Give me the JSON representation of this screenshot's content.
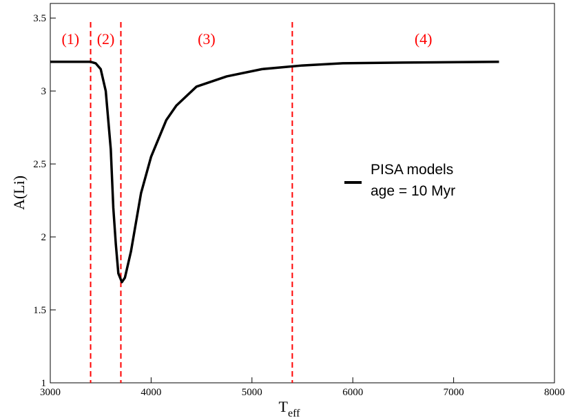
{
  "chart_data": {
    "type": "line",
    "xlabel": "T",
    "xlabel_subscript": "eff",
    "ylabel": "A(Li)",
    "x": [
      3000,
      3400,
      3450,
      3500,
      3550,
      3600,
      3625,
      3650,
      3675,
      3710,
      3740,
      3800,
      3900,
      4000,
      4150,
      4250,
      4450,
      4750,
      5100,
      5500,
      5900,
      6500,
      7450
    ],
    "series": [
      {
        "name": "PISA models",
        "color": "#000000",
        "values": [
          3.2,
          3.2,
          3.19,
          3.15,
          3.0,
          2.6,
          2.2,
          1.95,
          1.75,
          1.69,
          1.72,
          1.9,
          2.3,
          2.55,
          2.8,
          2.9,
          3.03,
          3.1,
          3.15,
          3.175,
          3.19,
          3.195,
          3.2
        ]
      }
    ],
    "legend_note": "age = 10 Myr",
    "vlines": [
      3400,
      3700,
      5400
    ],
    "vline_color": "#ff0000",
    "regions": [
      "(1)",
      "(2)",
      "(3)",
      "(4)"
    ],
    "xlim": [
      3000,
      8000
    ],
    "xticks": [
      3000,
      4000,
      5000,
      6000,
      7000,
      8000
    ],
    "ylim": [
      1,
      3.6
    ],
    "yticks": [
      1,
      1.5,
      2,
      2.5,
      3,
      3.5
    ]
  }
}
